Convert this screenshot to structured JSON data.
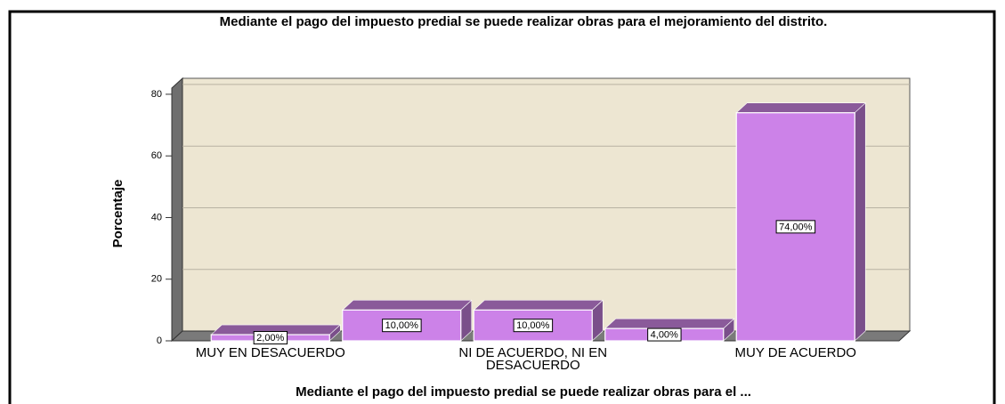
{
  "chart_data": {
    "type": "bar",
    "title": "Mediante el pago del impuesto predial se puede realizar obras para el mejoramiento del distrito.",
    "x_label": "Mediante el pago del impuesto predial se puede realizar obras para el ...",
    "y_label": "Porcentaje",
    "categories": [
      "MUY EN DESACUERDO",
      null,
      "NI DE ACUERDO, NI EN DESACUERDO",
      null,
      "MUY DE ACUERDO"
    ],
    "values": [
      2,
      10,
      10,
      4,
      74
    ],
    "value_labels": [
      "2,00%",
      "10,00%",
      "10,00%",
      "4,00%",
      "74,00%"
    ],
    "color": "#cc82e8",
    "ylim": [
      0,
      82
    ],
    "yticks": [
      0,
      20,
      40,
      60,
      80
    ],
    "grid": true
  }
}
